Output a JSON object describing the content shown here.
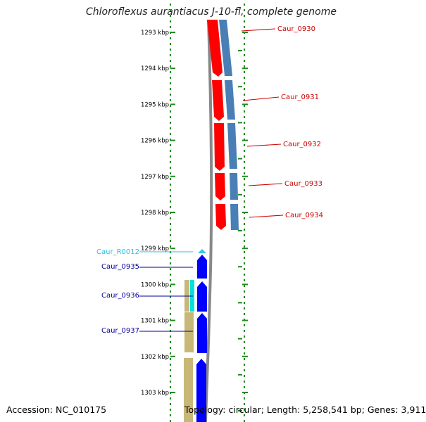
{
  "title": "Chloroflexus aurantiacus J-10-fl, complete genome",
  "accession": "Accession: NC_010175",
  "summary": "Topology: circular; Length: 5,258,541 bp; Genes: 3,911",
  "colors": {
    "forward_strand": "#ff0000",
    "forward_shadow": "#4a7fb5",
    "reverse_strand": "#0000ff",
    "rna": "#33ccee",
    "khaki_track": "#c8b878",
    "cyan_track": "#00e0e0",
    "backbone": "#888888",
    "tick": "#1e8c1e",
    "label_red": "#cc0000",
    "label_blue": "#000099",
    "label_cyan": "#33bbdd"
  },
  "scale_ticks": [
    "1293 kbp",
    "1294 kbp",
    "1295 kbp",
    "1296 kbp",
    "1297 kbp",
    "1298 kbp",
    "1299 kbp",
    "1300 kbp",
    "1301 kbp",
    "1302 kbp",
    "1303 kbp"
  ],
  "labels_right": [
    "Caur_0930",
    "Caur_0931",
    "Caur_0932",
    "Caur_0933",
    "Caur_0934"
  ],
  "labels_left": [
    {
      "text": "Caur_R0012",
      "color": "rna"
    },
    {
      "text": "Caur_0935",
      "color": "reverse"
    },
    {
      "text": "Caur_0936",
      "color": "reverse"
    },
    {
      "text": "Caur_0937",
      "color": "reverse"
    }
  ]
}
